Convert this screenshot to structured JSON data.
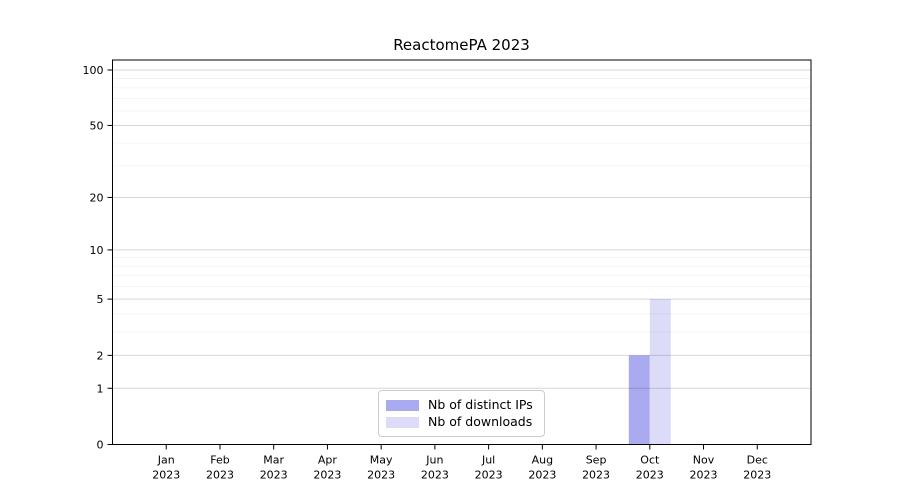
{
  "chart_data": {
    "type": "bar",
    "title": "ReactomePA 2023",
    "categories": [
      "Jan 2023",
      "Feb 2023",
      "Mar 2023",
      "Apr 2023",
      "May 2023",
      "Jun 2023",
      "Jul 2023",
      "Aug 2023",
      "Sep 2023",
      "Oct 2023",
      "Nov 2023",
      "Dec 2023"
    ],
    "series": [
      {
        "name": "Nb of distinct IPs",
        "color": "#aaaaf0",
        "values": [
          0,
          0,
          0,
          0,
          0,
          0,
          0,
          0,
          0,
          2,
          0,
          0
        ]
      },
      {
        "name": "Nb of downloads",
        "color": "#dcdcf8",
        "values": [
          0,
          0,
          0,
          0,
          0,
          0,
          0,
          0,
          0,
          5,
          0,
          0
        ]
      }
    ],
    "xlabel": "",
    "ylabel": "",
    "y_scale": "log1p",
    "ylim": [
      0,
      113
    ],
    "y_major_ticks": [
      0,
      1,
      2,
      5,
      10,
      20,
      50,
      100
    ],
    "y_minor_ticks": [
      3,
      4,
      6,
      7,
      8,
      9,
      30,
      40,
      60,
      70,
      80,
      90
    ],
    "grid": "horizontal, major and faint minor lines",
    "legend_position": "lower center"
  },
  "colors": {
    "bar_distinct_ips": "#aaaaf0",
    "bar_downloads": "#dcdcf8",
    "axis": "#000000",
    "major_grid": "rgba(0,0,0,0.16)",
    "minor_grid": "rgba(0,0,0,0.06)",
    "legend_border": "#cccccc"
  }
}
